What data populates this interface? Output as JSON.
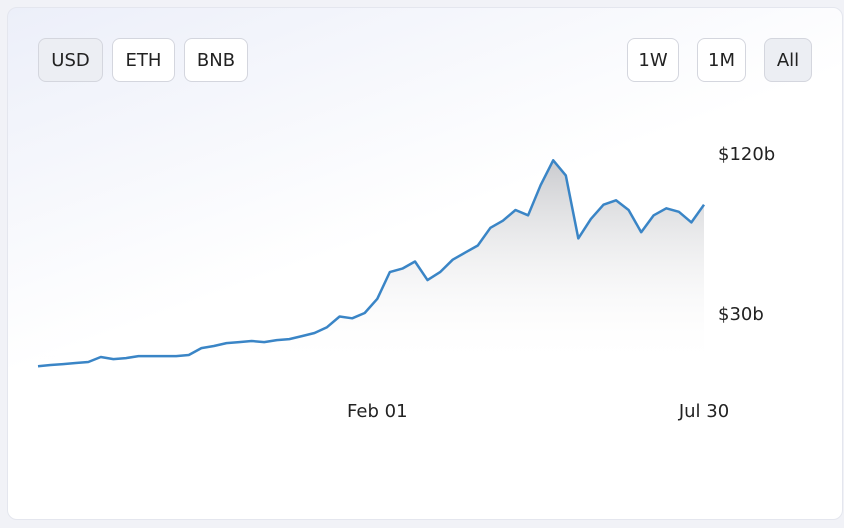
{
  "currency_buttons": [
    "USD",
    "ETH",
    "BNB"
  ],
  "range_buttons": [
    "1W",
    "1M",
    "All"
  ],
  "chart_data": {
    "type": "area",
    "categories": [
      null,
      null,
      null,
      null,
      null,
      null,
      null,
      null,
      null,
      null,
      null,
      null,
      null,
      null,
      null,
      null,
      null,
      null,
      null,
      null,
      null,
      null,
      null,
      null,
      null,
      null,
      null,
      "Feb 01",
      null,
      null,
      null,
      null,
      null,
      null,
      null,
      null,
      null,
      null,
      null,
      null,
      null,
      null,
      null,
      null,
      null,
      null,
      null,
      null,
      null,
      null,
      null,
      null,
      null,
      "Jul 30"
    ],
    "values": [
      1,
      1.7,
      2.2,
      2.8,
      3.4,
      6.2,
      5,
      5.6,
      6.7,
      6.7,
      6.7,
      6.7,
      7.3,
      11.2,
      12.4,
      14,
      14.6,
      15.2,
      14.6,
      15.7,
      16.3,
      18,
      19.7,
      23,
      29,
      28,
      31,
      39,
      54,
      56,
      60,
      49.5,
      54,
      61,
      65,
      69,
      79,
      83,
      89,
      86,
      103,
      117,
      108.5,
      73,
      84,
      92,
      94.5,
      89,
      76.5,
      86,
      90,
      88,
      82,
      92
    ],
    "color": "#3a85c6",
    "ylim": [
      0,
      120
    ],
    "yticks": [
      {
        "value": 30,
        "label": "$30b"
      },
      {
        "value": 120,
        "label": "$120b"
      }
    ]
  }
}
